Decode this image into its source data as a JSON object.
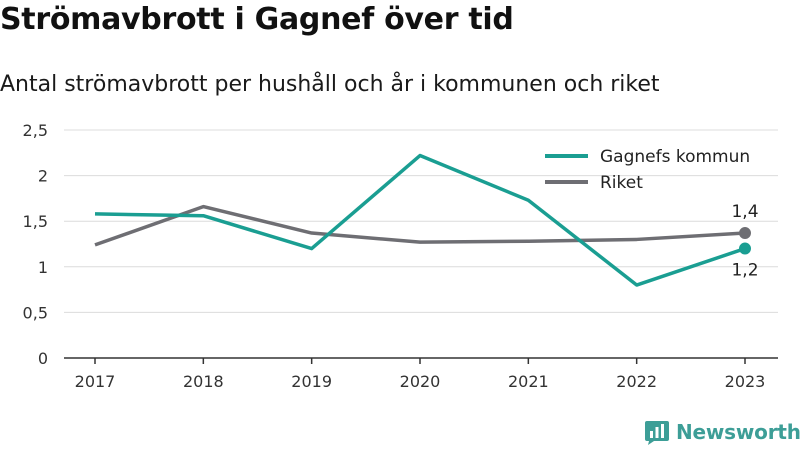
{
  "header": {
    "title": "Strömavbrott i Gagnef över tid",
    "subtitle": "Antal strömavbrott per hushåll och år i kommunen och riket"
  },
  "brand": {
    "name": "Newsworthy",
    "icon": "bar-chart-logo-icon",
    "color": "#3d9e97"
  },
  "chart_data": {
    "type": "line",
    "title": "Strömavbrott i Gagnef över tid",
    "subtitle": "Antal strömavbrott per hushåll och år i kommunen och riket",
    "xlabel": "",
    "ylabel": "",
    "x": [
      "2017",
      "2018",
      "2019",
      "2020",
      "2021",
      "2022",
      "2023"
    ],
    "ylim": [
      0,
      2.5
    ],
    "yticks": [
      0,
      0.5,
      1,
      1.5,
      2,
      2.5
    ],
    "ytick_labels": [
      "0",
      "0,5",
      "1",
      "1,5",
      "2",
      "2,5"
    ],
    "grid": true,
    "legend_position": "top-right",
    "series": [
      {
        "name": "Gagnefs kommun",
        "color": "#1a9e92",
        "values": [
          1.58,
          1.56,
          1.2,
          2.22,
          1.73,
          0.8,
          1.2
        ],
        "end_label": "1,2"
      },
      {
        "name": "Riket",
        "color": "#6e6e73",
        "values": [
          1.24,
          1.66,
          1.37,
          1.27,
          1.28,
          1.3,
          1.37
        ],
        "end_label": "1,4"
      }
    ]
  }
}
